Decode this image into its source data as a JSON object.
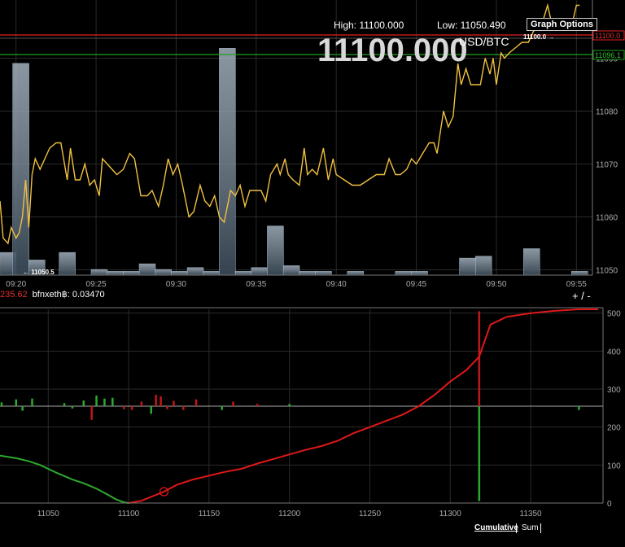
{
  "header": {
    "high_label": "High: 11100.000",
    "low_label": "Low: 11050.490",
    "price": "11100.000",
    "unit": "USD/BTC",
    "graph_options_label": "Graph Options"
  },
  "pair_row": {
    "neg_value": "235.62",
    "pair_text": "bfnxeth฿: 0.03470"
  },
  "zoom_control": "+ / -",
  "bottom_buttons": {
    "cumulative": "Cumulative",
    "sum": "Sum"
  },
  "colors": {
    "price_line": "#f0c040",
    "bid": "#2ea82e",
    "ask": "#e01818",
    "volume": "#8ba2b8",
    "high_line": "#e02020",
    "low_line": "#20a020"
  },
  "chart_data": [
    {
      "type": "line",
      "subtype": "price-with-volume",
      "x_ticks": [
        "09:20",
        "09:25",
        "09:30",
        "09:35",
        "09:40",
        "09:45",
        "09:50",
        "09:55"
      ],
      "y_ticks": [
        11050,
        11060,
        11070,
        11080,
        11090
      ],
      "ylim": [
        11049,
        11101
      ],
      "xlim_minutes": [
        0,
        37
      ],
      "high_marker": "11100.0",
      "low_marker": "11050.5",
      "right_labels": [
        "11100.0",
        "11096.1"
      ],
      "series": [
        {
          "values": [
            [
              0,
              11063
            ],
            [
              0.2,
              11056
            ],
            [
              0.5,
              11055
            ],
            [
              0.7,
              11058
            ],
            [
              1.0,
              11056
            ],
            [
              1.2,
              11057
            ],
            [
              1.4,
              11060
            ],
            [
              1.6,
              11067
            ],
            [
              1.8,
              11058
            ],
            [
              2.0,
              11068
            ],
            [
              2.2,
              11071
            ],
            [
              2.5,
              11069
            ],
            [
              2.8,
              11071
            ],
            [
              3.1,
              11073
            ],
            [
              3.5,
              11074
            ],
            [
              3.8,
              11074
            ],
            [
              4.2,
              11067
            ],
            [
              4.4,
              11073
            ],
            [
              4.7,
              11067
            ],
            [
              5.0,
              11067
            ],
            [
              5.3,
              11070
            ],
            [
              5.6,
              11066
            ],
            [
              5.9,
              11067
            ],
            [
              6.2,
              11064
            ],
            [
              6.4,
              11071
            ],
            [
              6.7,
              11070
            ],
            [
              7.0,
              11069
            ],
            [
              7.3,
              11068
            ],
            [
              7.7,
              11069
            ],
            [
              8.1,
              11072
            ],
            [
              8.4,
              11071
            ],
            [
              8.8,
              11064
            ],
            [
              9.2,
              11064
            ],
            [
              9.5,
              11065
            ],
            [
              9.9,
              11062
            ],
            [
              10.2,
              11066
            ],
            [
              10.5,
              11071
            ],
            [
              10.8,
              11068
            ],
            [
              11.1,
              11070
            ],
            [
              11.4,
              11066
            ],
            [
              11.8,
              11060
            ],
            [
              12.1,
              11061
            ],
            [
              12.5,
              11066
            ],
            [
              12.8,
              11063
            ],
            [
              13.1,
              11062
            ],
            [
              13.4,
              11064
            ],
            [
              13.7,
              11060
            ],
            [
              14.0,
              11059
            ],
            [
              14.4,
              11065
            ],
            [
              14.7,
              11064
            ],
            [
              15.0,
              11066
            ],
            [
              15.3,
              11062
            ],
            [
              15.6,
              11065
            ],
            [
              15.9,
              11065
            ],
            [
              16.3,
              11065
            ],
            [
              16.6,
              11063
            ],
            [
              16.9,
              11068
            ],
            [
              17.3,
              11070
            ],
            [
              17.5,
              11068
            ],
            [
              17.8,
              11071
            ],
            [
              18.0,
              11068
            ],
            [
              18.3,
              11067
            ],
            [
              18.7,
              11066
            ],
            [
              19.0,
              11073
            ],
            [
              19.2,
              11068
            ],
            [
              19.5,
              11069
            ],
            [
              19.8,
              11068
            ],
            [
              20.2,
              11073
            ],
            [
              20.5,
              11067
            ],
            [
              20.8,
              11071
            ],
            [
              21.0,
              11068
            ],
            [
              21.5,
              11067
            ],
            [
              22.0,
              11066
            ],
            [
              22.5,
              11066
            ],
            [
              23.0,
              11067
            ],
            [
              23.5,
              11068
            ],
            [
              24.0,
              11068
            ],
            [
              24.3,
              11071
            ],
            [
              24.7,
              11068
            ],
            [
              25.0,
              11068
            ],
            [
              25.4,
              11069
            ],
            [
              25.7,
              11071
            ],
            [
              26.0,
              11070
            ],
            [
              26.4,
              11072
            ],
            [
              26.8,
              11074
            ],
            [
              27.1,
              11074
            ],
            [
              27.3,
              11072
            ],
            [
              27.7,
              11080
            ],
            [
              28.0,
              11077
            ],
            [
              28.3,
              11079
            ],
            [
              28.6,
              11089
            ],
            [
              28.8,
              11085
            ],
            [
              29.1,
              11088
            ],
            [
              29.4,
              11085
            ],
            [
              29.7,
              11085
            ],
            [
              30.0,
              11085
            ],
            [
              30.3,
              11090
            ],
            [
              30.6,
              11087
            ],
            [
              30.8,
              11090
            ],
            [
              31.0,
              11085
            ],
            [
              31.3,
              11091
            ],
            [
              31.5,
              11090
            ],
            [
              31.8,
              11091
            ],
            [
              32.2,
              11092
            ],
            [
              32.6,
              11093
            ],
            [
              33.0,
              11093
            ],
            [
              33.3,
              11095
            ],
            [
              33.6,
              11096
            ],
            [
              33.9,
              11097
            ],
            [
              34.2,
              11100
            ],
            [
              34.5,
              11096
            ],
            [
              34.8,
              11096
            ],
            [
              35.1,
              11097
            ],
            [
              35.4,
              11097
            ],
            [
              35.7,
              11096
            ],
            [
              36.0,
              11100
            ],
            [
              36.2,
              11100
            ]
          ]
        }
      ],
      "volume_bars": [
        {
          "x": 0.5,
          "v": 6
        },
        {
          "x": 1.3,
          "v": 56
        },
        {
          "x": 2.3,
          "v": 4
        },
        {
          "x": 4.2,
          "v": 6
        },
        {
          "x": 6.2,
          "v": 1.5
        },
        {
          "x": 7.2,
          "v": 1
        },
        {
          "x": 8.2,
          "v": 1
        },
        {
          "x": 9.2,
          "v": 3
        },
        {
          "x": 10.2,
          "v": 1.5
        },
        {
          "x": 11.2,
          "v": 1
        },
        {
          "x": 12.2,
          "v": 2
        },
        {
          "x": 13.2,
          "v": 1
        },
        {
          "x": 14.2,
          "v": 60
        },
        {
          "x": 15.2,
          "v": 1
        },
        {
          "x": 16.2,
          "v": 2
        },
        {
          "x": 17.2,
          "v": 13
        },
        {
          "x": 18.2,
          "v": 2.5
        },
        {
          "x": 19.2,
          "v": 1
        },
        {
          "x": 20.2,
          "v": 1
        },
        {
          "x": 22.2,
          "v": 1
        },
        {
          "x": 25.2,
          "v": 1
        },
        {
          "x": 26.2,
          "v": 1
        },
        {
          "x": 29.2,
          "v": 4.5
        },
        {
          "x": 30.2,
          "v": 5
        },
        {
          "x": 33.2,
          "v": 7
        },
        {
          "x": 36.2,
          "v": 1
        }
      ]
    },
    {
      "type": "area",
      "subtype": "order-book-depth",
      "x_ticks": [
        11050,
        11100,
        11150,
        11200,
        11250,
        11300,
        11350
      ],
      "y_ticks": [
        0,
        100,
        200,
        300,
        400,
        500
      ],
      "xlim": [
        11020,
        11395
      ],
      "ylim": [
        0,
        510
      ],
      "bid_cumulative": [
        [
          11020,
          125
        ],
        [
          11030,
          118
        ],
        [
          11038,
          110
        ],
        [
          11045,
          100
        ],
        [
          11055,
          80
        ],
        [
          11065,
          62
        ],
        [
          11072,
          52
        ],
        [
          11080,
          38
        ],
        [
          11087,
          22
        ],
        [
          11092,
          10
        ],
        [
          11097,
          2
        ],
        [
          11100,
          0
        ]
      ],
      "ask_cumulative": [
        [
          11100,
          0
        ],
        [
          11108,
          6
        ],
        [
          11115,
          18
        ],
        [
          11122,
          30
        ],
        [
          11130,
          48
        ],
        [
          11140,
          62
        ],
        [
          11150,
          72
        ],
        [
          11160,
          82
        ],
        [
          11170,
          90
        ],
        [
          11180,
          104
        ],
        [
          11190,
          116
        ],
        [
          11200,
          128
        ],
        [
          11210,
          140
        ],
        [
          11220,
          150
        ],
        [
          11230,
          164
        ],
        [
          11240,
          184
        ],
        [
          11250,
          200
        ],
        [
          11260,
          216
        ],
        [
          11270,
          232
        ],
        [
          11280,
          254
        ],
        [
          11290,
          284
        ],
        [
          11300,
          320
        ],
        [
          11310,
          350
        ],
        [
          11318,
          385
        ],
        [
          11325,
          470
        ],
        [
          11335,
          490
        ],
        [
          11350,
          500
        ],
        [
          11365,
          506
        ],
        [
          11380,
          510
        ],
        [
          11392,
          510
        ]
      ],
      "individual_orders": [
        {
          "price": 11021,
          "v": 10,
          "side": "bid"
        },
        {
          "price": 11030,
          "v": 18,
          "side": "bid"
        },
        {
          "price": 11034,
          "v": -12,
          "side": "bid"
        },
        {
          "price": 11040,
          "v": 20,
          "side": "bid"
        },
        {
          "price": 11060,
          "v": 8,
          "side": "bid"
        },
        {
          "price": 11065,
          "v": -6,
          "side": "bid"
        },
        {
          "price": 11072,
          "v": 15,
          "side": "bid"
        },
        {
          "price": 11077,
          "v": -36,
          "side": "ask"
        },
        {
          "price": 11080,
          "v": 28,
          "side": "bid"
        },
        {
          "price": 11085,
          "v": 20,
          "side": "bid"
        },
        {
          "price": 11090,
          "v": 22,
          "side": "bid"
        },
        {
          "price": 11097,
          "v": -8,
          "side": "ask"
        },
        {
          "price": 11102,
          "v": -10,
          "side": "ask"
        },
        {
          "price": 11108,
          "v": 12,
          "side": "ask"
        },
        {
          "price": 11114,
          "v": -20,
          "side": "bid"
        },
        {
          "price": 11117,
          "v": 30,
          "side": "ask"
        },
        {
          "price": 11120,
          "v": 26,
          "side": "ask"
        },
        {
          "price": 11124,
          "v": -8,
          "side": "ask"
        },
        {
          "price": 11128,
          "v": 14,
          "side": "ask"
        },
        {
          "price": 11134,
          "v": -10,
          "side": "ask"
        },
        {
          "price": 11142,
          "v": 18,
          "side": "ask"
        },
        {
          "price": 11158,
          "v": -10,
          "side": "bid"
        },
        {
          "price": 11165,
          "v": 12,
          "side": "ask"
        },
        {
          "price": 11180,
          "v": 6,
          "side": "ask"
        },
        {
          "price": 11200,
          "v": 6,
          "side": "bid"
        },
        {
          "price": 11318,
          "v": 250,
          "side": "ask"
        },
        {
          "price": 11318,
          "v": -250,
          "side": "bid"
        },
        {
          "price": 11380,
          "v": -10,
          "side": "bid"
        }
      ],
      "midline": 255
    }
  ]
}
